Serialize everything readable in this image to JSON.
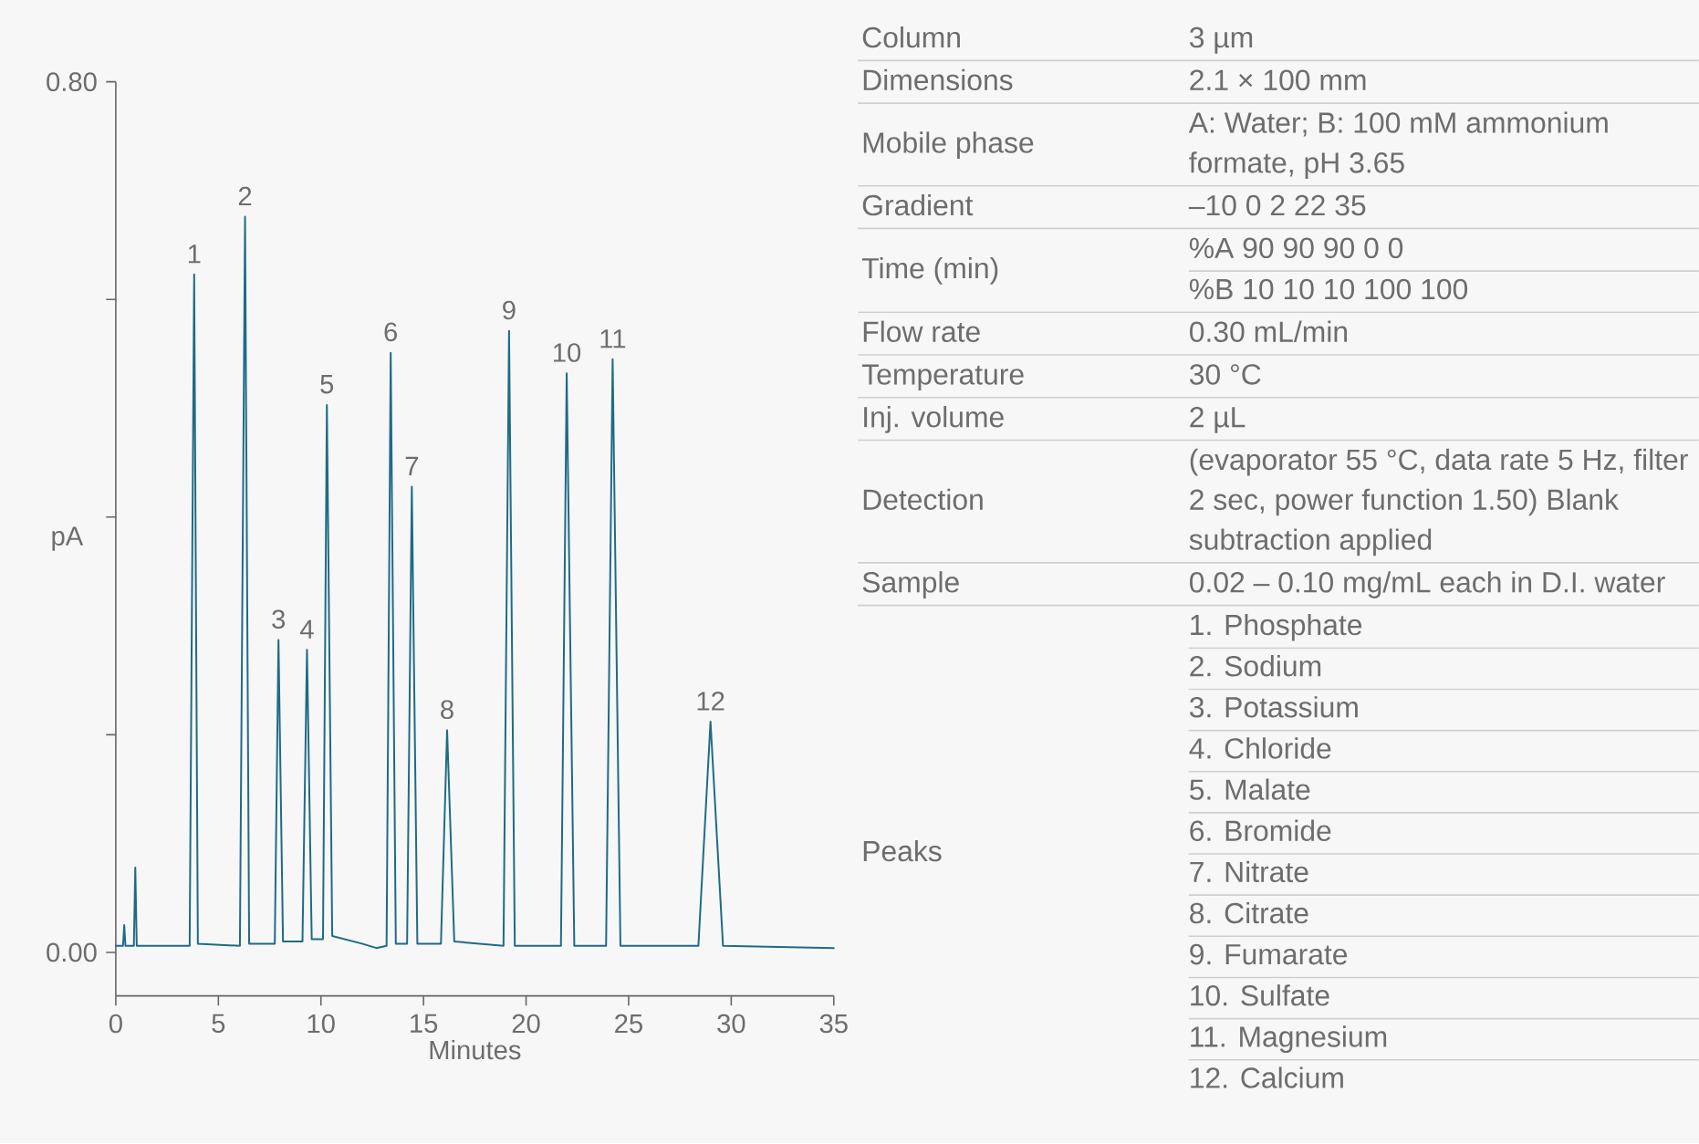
{
  "chart_data": [
    {
      "type": "line",
      "color": "#1f6b85",
      "x": [
        0,
        0.35,
        0.41,
        0.47,
        0.88,
        0.95,
        1.02,
        3.6,
        3.82,
        4.0,
        6.05,
        6.3,
        6.5,
        7.75,
        7.93,
        8.15,
        9.1,
        9.32,
        9.55,
        10.1,
        10.29,
        10.55,
        12.0,
        12.7,
        13.2,
        13.4,
        13.65,
        14.2,
        14.43,
        14.7,
        15.85,
        16.15,
        16.5,
        18.9,
        19.17,
        19.45,
        21.7,
        21.98,
        22.35,
        23.9,
        24.22,
        24.6,
        28.4,
        28.99,
        29.6,
        35
      ],
      "values": [
        0.006,
        0.006,
        0.025,
        0.006,
        0.006,
        0.078,
        0.006,
        0.006,
        0.623,
        0.008,
        0.006,
        0.676,
        0.008,
        0.008,
        0.287,
        0.01,
        0.01,
        0.278,
        0.012,
        0.012,
        0.503,
        0.015,
        0.008,
        0.004,
        0.006,
        0.551,
        0.008,
        0.008,
        0.428,
        0.008,
        0.008,
        0.204,
        0.01,
        0.006,
        0.571,
        0.006,
        0.006,
        0.532,
        0.006,
        0.006,
        0.545,
        0.006,
        0.006,
        0.212,
        0.006,
        0.004
      ],
      "xlim": [
        0,
        35
      ],
      "ylim": [
        -0.04,
        0.8
      ],
      "xticks": [
        0,
        5,
        10,
        15,
        20,
        25,
        30,
        35
      ],
      "yticks": [
        {
          "value": 0,
          "label": "0.00"
        },
        {
          "value": 0.2,
          "label": null
        },
        {
          "value": 0.4,
          "label": null
        },
        {
          "value": 0.6,
          "label": null
        },
        {
          "value": 0.8,
          "label": "0.80"
        }
      ],
      "xlabel": "Minutes",
      "ylabel": "pA",
      "annotations": [
        {
          "text": "1",
          "x": 3.82,
          "y": 0.623
        },
        {
          "text": "2",
          "x": 6.3,
          "y": 0.676
        },
        {
          "text": "3",
          "x": 7.93,
          "y": 0.287
        },
        {
          "text": "4",
          "x": 9.32,
          "y": 0.278
        },
        {
          "text": "5",
          "x": 10.29,
          "y": 0.503
        },
        {
          "text": "6",
          "x": 13.4,
          "y": 0.551
        },
        {
          "text": "7",
          "x": 14.43,
          "y": 0.428
        },
        {
          "text": "8",
          "x": 16.15,
          "y": 0.204
        },
        {
          "text": "9",
          "x": 19.17,
          "y": 0.571
        },
        {
          "text": "10",
          "x": 21.98,
          "y": 0.532
        },
        {
          "text": "11",
          "x": 24.22,
          "y": 0.545
        },
        {
          "text": "12",
          "x": 28.99,
          "y": 0.212
        }
      ]
    },
    {
      "type": "other",
      "categories": [
        "Column",
        "Dimensions",
        "Mobile phase",
        "Gradient",
        "Time (min)",
        null,
        "Flow rate",
        "Temperature",
        "Inj. volume",
        "Detection",
        "Sample",
        "Peaks",
        null,
        null,
        null,
        null,
        null,
        null,
        null,
        null,
        null,
        null,
        null
      ],
      "annotations": [
        "3 µm",
        "2.1 × 100 mm",
        "A: Water; B: 100 mM ammonium formate, pH 3.65",
        "–10 0 2 22 35",
        "%A 90 90 90 0 0",
        "%B 10 10 10 100 100",
        "0.30 mL/min",
        "30 °C",
        "2 µL",
        "(evaporator 55 °C, data rate 5 Hz, filter 2 sec, power function 1.50) Blank subtraction applied",
        "0.02 – 0.10 mg/mL each in D.I. water",
        "1. Phosphate",
        "2. Sodium",
        "3. Potassium",
        "4. Chloride",
        "5. Malate",
        "6. Bromide",
        "7. Nitrate",
        "8. Citrate",
        "9. Fumarate",
        "10. Sulfate",
        "11. Magnesium",
        "12. Calcium"
      ]
    }
  ]
}
